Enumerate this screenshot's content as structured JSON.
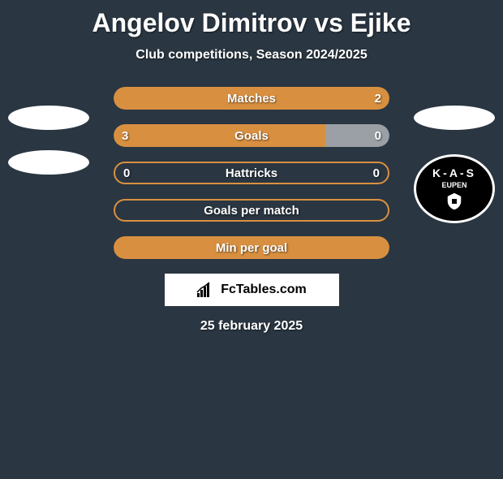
{
  "title": "Angelov Dimitrov vs Ejike",
  "subtitle": "Club competitions, Season 2024/2025",
  "colors": {
    "background": "#2a3642",
    "bar_orange": "#d89040",
    "bar_gray": "#9aa0a6",
    "text": "#ffffff",
    "border_orange": "#d89040"
  },
  "badge": {
    "top_text": "K-A-S",
    "name": "EUPEN"
  },
  "bars": [
    {
      "label": "Matches",
      "left_value": "",
      "right_value": "2",
      "type": "full",
      "fill_color": "#d89040"
    },
    {
      "label": "Goals",
      "left_value": "3",
      "right_value": "0",
      "type": "split",
      "left_pct": 77,
      "left_color": "#d89040",
      "right_color": "#9aa0a6"
    },
    {
      "label": "Hattricks",
      "left_value": "0",
      "right_value": "0",
      "type": "outline",
      "border_color": "#d89040"
    },
    {
      "label": "Goals per match",
      "left_value": "",
      "right_value": "",
      "type": "outline",
      "border_color": "#d89040"
    },
    {
      "label": "Min per goal",
      "left_value": "",
      "right_value": "",
      "type": "full",
      "fill_color": "#d89040"
    }
  ],
  "watermark": "FcTables.com",
  "date": "25 february 2025"
}
